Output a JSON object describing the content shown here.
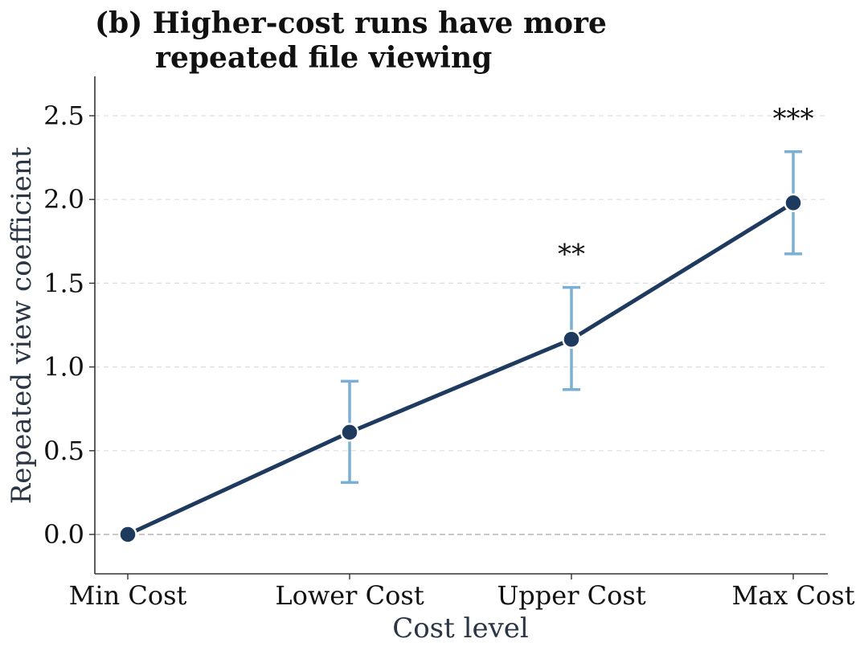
{
  "chart_data": {
    "type": "line",
    "title_lines": [
      "(b) Higher-cost runs have more",
      "repeated file viewing"
    ],
    "xlabel": "Cost level",
    "ylabel": "Repeated view coefficient",
    "categories": [
      "Min Cost",
      "Lower Cost",
      "Upper Cost",
      "Max Cost"
    ],
    "series": [
      {
        "values": [
          0.0,
          0.61,
          1.165,
          1.98
        ],
        "ci_low": [
          null,
          0.31,
          0.865,
          1.675
        ],
        "ci_high": [
          null,
          0.915,
          1.475,
          2.285
        ]
      }
    ],
    "significance": [
      "",
      "",
      "**",
      "***"
    ],
    "ylim": [
      -0.23,
      2.73
    ],
    "yticks": [
      0.0,
      0.5,
      1.0,
      1.5,
      2.0,
      2.5
    ],
    "ytick_labels": [
      "0.0",
      "0.5",
      "1.0",
      "1.5",
      "2.0",
      "2.5"
    ],
    "grid": "horizontal dashed",
    "reference_line": 0,
    "colors": {
      "line": "#1f3a5f",
      "marker": "#1f3a5f",
      "marker_edge": "#ffffff",
      "errorbar": "#7bafd4",
      "grid": "#d9dde3",
      "zero_line": "#b5b5b5",
      "axis": "#333333"
    }
  }
}
